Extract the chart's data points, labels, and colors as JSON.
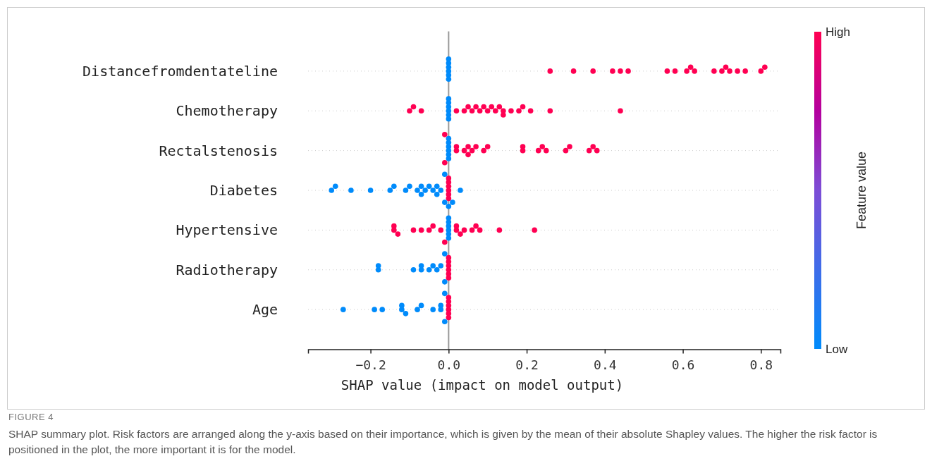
{
  "chart_data": {
    "type": "scatter",
    "orientation": "horizontal",
    "categories": [
      "Distancefromdentateline",
      "Chemotherapy",
      "Rectalstenosis",
      "Diabetes",
      "Hypertensive",
      "Radiotherapy",
      "Age"
    ],
    "xlabel": "SHAP value (impact on model output)",
    "clabel": "Feature value",
    "xlim": [
      -0.36,
      0.85
    ],
    "xticks": [
      {
        "value": -0.2,
        "label": "−0.2"
      },
      {
        "value": 0,
        "label": "0.0"
      },
      {
        "value": 0.2,
        "label": "0.2"
      },
      {
        "value": 0.4,
        "label": "0.4"
      },
      {
        "value": 0.6,
        "label": "0.6"
      },
      {
        "value": 0.8,
        "label": "0.8"
      }
    ],
    "clim": [
      0,
      1
    ],
    "cticks": [
      {
        "value": 0,
        "label": "Low"
      },
      {
        "value": 1,
        "label": "High"
      }
    ],
    "grid": "y",
    "marker": "circle",
    "ref_lines": [
      {
        "axis": "x",
        "value": 0,
        "color": "#999999"
      }
    ],
    "series": [
      {
        "x": [
          "Distancefromdentateline",
          "Distancefromdentateline",
          "Distancefromdentateline",
          "Distancefromdentateline",
          "Distancefromdentateline",
          "Distancefromdentateline",
          "Distancefromdentateline",
          "Distancefromdentateline",
          "Distancefromdentateline",
          "Distancefromdentateline",
          "Distancefromdentateline",
          "Distancefromdentateline",
          "Distancefromdentateline",
          "Distancefromdentateline",
          "Distancefromdentateline",
          "Distancefromdentateline",
          "Distancefromdentateline",
          "Distancefromdentateline",
          "Distancefromdentateline",
          "Distancefromdentateline",
          "Distancefromdentateline",
          "Distancefromdentateline",
          "Distancefromdentateline",
          "Distancefromdentateline",
          "Distancefromdentateline"
        ],
        "values": [
          0,
          0,
          0,
          0,
          0,
          0,
          0.26,
          0.32,
          0.37,
          0.42,
          0.44,
          0.46,
          0.56,
          0.58,
          0.61,
          0.62,
          0.63,
          0.68,
          0.7,
          0.71,
          0.72,
          0.74,
          0.76,
          0.8,
          0.81
        ],
        "colors": [
          "#008bfb",
          "#008bfb",
          "#008bfb",
          "#008bfb",
          "#008bfb",
          "#008bfb",
          "#ff0052",
          "#ff0052",
          "#ff0052",
          "#ff0052",
          "#ff0052",
          "#ff0052",
          "#ff0052",
          "#ff0052",
          "#ff0052",
          "#ff0052",
          "#ff0052",
          "#ff0052",
          "#ff0052",
          "#ff0052",
          "#ff0052",
          "#ff0052",
          "#ff0052",
          "#ff0052",
          "#ff0052"
        ]
      },
      {
        "x": [
          "Chemotherapy",
          "Chemotherapy",
          "Chemotherapy",
          "Chemotherapy",
          "Chemotherapy",
          "Chemotherapy",
          "Chemotherapy",
          "Chemotherapy",
          "Chemotherapy",
          "Chemotherapy",
          "Chemotherapy",
          "Chemotherapy",
          "Chemotherapy",
          "Chemotherapy",
          "Chemotherapy",
          "Chemotherapy",
          "Chemotherapy",
          "Chemotherapy",
          "Chemotherapy",
          "Chemotherapy",
          "Chemotherapy",
          "Chemotherapy",
          "Chemotherapy",
          "Chemotherapy",
          "Chemotherapy",
          "Chemotherapy",
          "Chemotherapy",
          "Chemotherapy"
        ],
        "values": [
          0,
          0,
          0,
          0,
          0,
          0,
          -0.1,
          -0.09,
          -0.07,
          0.02,
          0.04,
          0.05,
          0.06,
          0.07,
          0.08,
          0.09,
          0.1,
          0.11,
          0.12,
          0.13,
          0.14,
          0.14,
          0.16,
          0.18,
          0.19,
          0.21,
          0.26,
          0.44
        ],
        "colors": [
          "#008bfb",
          "#008bfb",
          "#008bfb",
          "#008bfb",
          "#008bfb",
          "#008bfb",
          "#ff0052",
          "#ff0052",
          "#ff0052",
          "#ff0052",
          "#ff0052",
          "#ff0052",
          "#ff0052",
          "#ff0052",
          "#ff0052",
          "#ff0052",
          "#ff0052",
          "#ff0052",
          "#ff0052",
          "#ff0052",
          "#ff0052",
          "#ff0052",
          "#ff0052",
          "#ff0052",
          "#ff0052",
          "#ff0052",
          "#ff0052",
          "#ff0052"
        ]
      },
      {
        "x": [
          "Rectalstenosis",
          "Rectalstenosis",
          "Rectalstenosis",
          "Rectalstenosis",
          "Rectalstenosis",
          "Rectalstenosis",
          "Rectalstenosis",
          "Rectalstenosis",
          "Rectalstenosis",
          "Rectalstenosis",
          "Rectalstenosis",
          "Rectalstenosis",
          "Rectalstenosis",
          "Rectalstenosis",
          "Rectalstenosis",
          "Rectalstenosis",
          "Rectalstenosis",
          "Rectalstenosis",
          "Rectalstenosis",
          "Rectalstenosis",
          "Rectalstenosis",
          "Rectalstenosis",
          "Rectalstenosis",
          "Rectalstenosis",
          "Rectalstenosis",
          "Rectalstenosis",
          "Rectalstenosis"
        ],
        "values": [
          0,
          0,
          0,
          0,
          0,
          0,
          -0.01,
          -0.01,
          0.02,
          0.02,
          0.04,
          0.05,
          0.05,
          0.06,
          0.07,
          0.09,
          0.1,
          0.19,
          0.19,
          0.23,
          0.24,
          0.25,
          0.3,
          0.31,
          0.36,
          0.37,
          0.38
        ],
        "colors": [
          "#008bfb",
          "#008bfb",
          "#008bfb",
          "#008bfb",
          "#008bfb",
          "#008bfb",
          "#ff0052",
          "#ff0052",
          "#ff0052",
          "#ff0052",
          "#ff0052",
          "#ff0052",
          "#ff0052",
          "#ff0052",
          "#ff0052",
          "#ff0052",
          "#ff0052",
          "#ff0052",
          "#ff0052",
          "#ff0052",
          "#ff0052",
          "#ff0052",
          "#ff0052",
          "#ff0052",
          "#ff0052",
          "#ff0052",
          "#ff0052"
        ]
      },
      {
        "x": [
          "Diabetes",
          "Diabetes",
          "Diabetes",
          "Diabetes",
          "Diabetes",
          "Diabetes",
          "Diabetes",
          "Diabetes",
          "Diabetes",
          "Diabetes",
          "Diabetes",
          "Diabetes",
          "Diabetes",
          "Diabetes",
          "Diabetes",
          "Diabetes",
          "Diabetes",
          "Diabetes",
          "Diabetes",
          "Diabetes",
          "Diabetes",
          "Diabetes",
          "Diabetes",
          "Diabetes",
          "Diabetes",
          "Diabetes",
          "Diabetes",
          "Diabetes"
        ],
        "values": [
          0,
          0,
          0,
          0,
          0,
          0,
          -0.3,
          -0.29,
          -0.25,
          -0.2,
          -0.15,
          -0.14,
          -0.11,
          -0.1,
          -0.08,
          -0.07,
          -0.07,
          -0.06,
          -0.05,
          -0.04,
          -0.03,
          -0.03,
          -0.02,
          -0.01,
          -0.01,
          0.0,
          0.01,
          0.03
        ],
        "colors": [
          "#ff0052",
          "#ff0052",
          "#ff0052",
          "#ff0052",
          "#ff0052",
          "#ff0052",
          "#008bfb",
          "#008bfb",
          "#008bfb",
          "#008bfb",
          "#008bfb",
          "#008bfb",
          "#008bfb",
          "#008bfb",
          "#008bfb",
          "#008bfb",
          "#008bfb",
          "#008bfb",
          "#008bfb",
          "#008bfb",
          "#008bfb",
          "#008bfb",
          "#008bfb",
          "#008bfb",
          "#008bfb",
          "#008bfb",
          "#008bfb",
          "#008bfb"
        ]
      },
      {
        "x": [
          "Hypertensive",
          "Hypertensive",
          "Hypertensive",
          "Hypertensive",
          "Hypertensive",
          "Hypertensive",
          "Hypertensive",
          "Hypertensive",
          "Hypertensive",
          "Hypertensive",
          "Hypertensive",
          "Hypertensive",
          "Hypertensive",
          "Hypertensive",
          "Hypertensive",
          "Hypertensive",
          "Hypertensive",
          "Hypertensive",
          "Hypertensive",
          "Hypertensive",
          "Hypertensive",
          "Hypertensive",
          "Hypertensive",
          "Hypertensive"
        ],
        "values": [
          0,
          0,
          0,
          0,
          0,
          0,
          -0.14,
          -0.14,
          -0.13,
          -0.09,
          -0.07,
          -0.05,
          -0.04,
          -0.02,
          -0.01,
          0.02,
          0.02,
          0.03,
          0.04,
          0.06,
          0.07,
          0.08,
          0.13,
          0.22
        ],
        "colors": [
          "#008bfb",
          "#008bfb",
          "#008bfb",
          "#008bfb",
          "#008bfb",
          "#008bfb",
          "#ff0052",
          "#ff0052",
          "#ff0052",
          "#ff0052",
          "#ff0052",
          "#ff0052",
          "#ff0052",
          "#ff0052",
          "#ff0052",
          "#ff0052",
          "#ff0052",
          "#ff0052",
          "#ff0052",
          "#ff0052",
          "#ff0052",
          "#ff0052",
          "#ff0052",
          "#ff0052"
        ]
      },
      {
        "x": [
          "Radiotherapy",
          "Radiotherapy",
          "Radiotherapy",
          "Radiotherapy",
          "Radiotherapy",
          "Radiotherapy",
          "Radiotherapy",
          "Radiotherapy",
          "Radiotherapy",
          "Radiotherapy",
          "Radiotherapy",
          "Radiotherapy",
          "Radiotherapy",
          "Radiotherapy",
          "Radiotherapy",
          "Radiotherapy",
          "Radiotherapy"
        ],
        "values": [
          0,
          0,
          0,
          0,
          0,
          0,
          -0.18,
          -0.18,
          -0.09,
          -0.07,
          -0.07,
          -0.05,
          -0.04,
          -0.03,
          -0.02,
          -0.01,
          -0.01
        ],
        "colors": [
          "#ff0052",
          "#ff0052",
          "#ff0052",
          "#ff0052",
          "#ff0052",
          "#ff0052",
          "#008bfb",
          "#008bfb",
          "#008bfb",
          "#008bfb",
          "#008bfb",
          "#008bfb",
          "#008bfb",
          "#008bfb",
          "#008bfb",
          "#008bfb",
          "#008bfb"
        ]
      },
      {
        "x": [
          "Age",
          "Age",
          "Age",
          "Age",
          "Age",
          "Age",
          "Age",
          "Age",
          "Age",
          "Age",
          "Age",
          "Age",
          "Age",
          "Age",
          "Age",
          "Age",
          "Age",
          "Age",
          "Age"
        ],
        "values": [
          0,
          0,
          0,
          0,
          0,
          0,
          -0.27,
          -0.19,
          -0.17,
          -0.12,
          -0.12,
          -0.11,
          -0.08,
          -0.07,
          -0.04,
          -0.02,
          -0.02,
          -0.01,
          -0.01
        ],
        "colors": [
          "#ff0052",
          "#ff0052",
          "#ff0052",
          "#ff0052",
          "#ff0052",
          "#ff0052",
          "#008bfb",
          "#008bfb",
          "#008bfb",
          "#008bfb",
          "#008bfb",
          "#008bfb",
          "#008bfb",
          "#008bfb",
          "#008bfb",
          "#008bfb",
          "#008bfb",
          "#008bfb",
          "#008bfb"
        ]
      }
    ],
    "annotations": [
      "FIGURE 4",
      "SHAP summary plot. Risk factors are arranged along the y-axis based on their importance, which is given by the mean of their absolute Shapley values. The higher the risk factor is positioned in the plot, the more important it is for the model."
    ]
  }
}
